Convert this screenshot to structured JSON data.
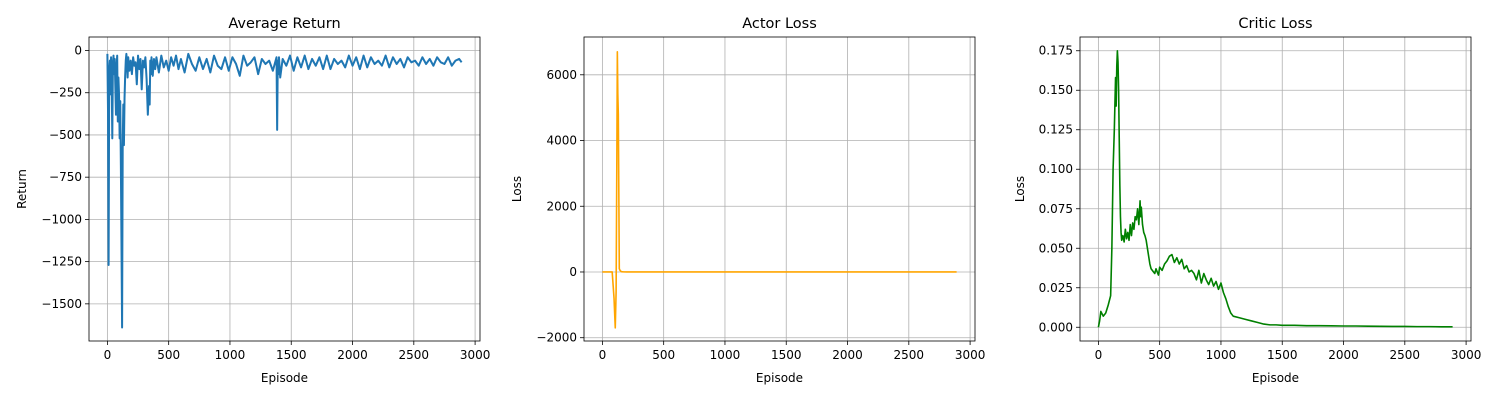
{
  "chart_data": [
    {
      "type": "line",
      "title": "Average Return",
      "xlabel": "Episode",
      "ylabel": "Return",
      "xlim": [
        -150,
        3040
      ],
      "ylim": [
        -1720,
        80
      ],
      "xticks": [
        0,
        500,
        1000,
        1500,
        2000,
        2500,
        3000
      ],
      "yticks": [
        0,
        -250,
        -500,
        -750,
        -1000,
        -1250,
        -1500
      ],
      "grid": true,
      "series": [
        {
          "color": "#1f77b4",
          "x": [
            0,
            5,
            10,
            15,
            20,
            25,
            30,
            35,
            40,
            45,
            50,
            55,
            60,
            65,
            70,
            75,
            80,
            85,
            90,
            95,
            100,
            105,
            110,
            115,
            120,
            125,
            130,
            135,
            140,
            145,
            150,
            155,
            160,
            165,
            170,
            180,
            190,
            200,
            210,
            220,
            230,
            240,
            250,
            260,
            270,
            280,
            290,
            300,
            310,
            320,
            330,
            340,
            345,
            350,
            355,
            360,
            370,
            380,
            390,
            400,
            420,
            440,
            460,
            480,
            500,
            520,
            540,
            560,
            580,
            600,
            630,
            660,
            690,
            720,
            750,
            780,
            810,
            840,
            870,
            900,
            930,
            960,
            990,
            1020,
            1050,
            1080,
            1110,
            1140,
            1170,
            1200,
            1230,
            1260,
            1290,
            1320,
            1350,
            1380,
            1385,
            1390,
            1395,
            1400,
            1410,
            1430,
            1460,
            1490,
            1520,
            1550,
            1580,
            1610,
            1640,
            1670,
            1700,
            1730,
            1760,
            1790,
            1820,
            1850,
            1880,
            1910,
            1940,
            1970,
            2000,
            2030,
            2060,
            2090,
            2120,
            2150,
            2180,
            2210,
            2240,
            2270,
            2300,
            2330,
            2360,
            2390,
            2420,
            2450,
            2480,
            2510,
            2540,
            2570,
            2600,
            2630,
            2660,
            2690,
            2720,
            2750,
            2780,
            2810,
            2840,
            2870,
            2890
          ],
          "y": [
            -20,
            -350,
            -1270,
            -120,
            -60,
            -260,
            -40,
            -180,
            -520,
            -80,
            -30,
            -140,
            -50,
            -220,
            -380,
            -100,
            -30,
            -420,
            -160,
            -260,
            -520,
            -300,
            -680,
            -1150,
            -1640,
            -560,
            -320,
            -560,
            -280,
            -150,
            -60,
            -20,
            -80,
            -160,
            -40,
            -120,
            -60,
            -140,
            -40,
            -90,
            -70,
            -200,
            -30,
            -110,
            -50,
            -230,
            -60,
            -100,
            -40,
            -170,
            -380,
            -210,
            -320,
            -60,
            -140,
            -40,
            -150,
            -50,
            -110,
            -40,
            -130,
            -30,
            -100,
            -60,
            -120,
            -40,
            -90,
            -30,
            -110,
            -50,
            -130,
            -20,
            -80,
            -120,
            -40,
            -110,
            -50,
            -130,
            -30,
            -90,
            -110,
            -40,
            -120,
            -40,
            -80,
            -150,
            -30,
            -90,
            -70,
            -40,
            -140,
            -50,
            -80,
            -60,
            -120,
            -40,
            -470,
            -60,
            -140,
            -40,
            -160,
            -50,
            -90,
            -30,
            -120,
            -40,
            -100,
            -30,
            -110,
            -50,
            -90,
            -40,
            -110,
            -30,
            -110,
            -50,
            -80,
            -60,
            -100,
            -30,
            -90,
            -40,
            -110,
            -30,
            -100,
            -40,
            -80,
            -60,
            -90,
            -30,
            -100,
            -40,
            -80,
            -50,
            -100,
            -40,
            -70,
            -60,
            -90,
            -40,
            -80,
            -50,
            -90,
            -40,
            -70,
            -80,
            -40,
            -90,
            -60,
            -50,
            -70
          ]
        }
      ]
    },
    {
      "type": "line",
      "title": "Actor Loss",
      "xlabel": "Episode",
      "ylabel": "Loss",
      "xlim": [
        -150,
        3040
      ],
      "ylim": [
        -2100,
        7150
      ],
      "xticks": [
        0,
        500,
        1000,
        1500,
        2000,
        2500,
        3000
      ],
      "yticks": [
        6000,
        4000,
        2000,
        0,
        -2000
      ],
      "grid": true,
      "series": [
        {
          "color": "#ffa500",
          "x": [
            0,
            50,
            80,
            95,
            105,
            112,
            118,
            122,
            126,
            130,
            134,
            138,
            145,
            155,
            170,
            200,
            300,
            500,
            1000,
            1500,
            2000,
            2500,
            2890
          ],
          "y": [
            0,
            0,
            0,
            -800,
            -1700,
            -600,
            3500,
            6700,
            5400,
            4800,
            2500,
            100,
            40,
            10,
            5,
            0,
            0,
            0,
            0,
            0,
            0,
            0,
            0
          ]
        }
      ]
    },
    {
      "type": "line",
      "title": "Critic Loss",
      "xlabel": "Episode",
      "ylabel": "Loss",
      "xlim": [
        -150,
        3040
      ],
      "ylim": [
        -0.0087,
        0.1837
      ],
      "xticks": [
        0,
        500,
        1000,
        1500,
        2000,
        2500,
        3000
      ],
      "yticks": [
        0.175,
        0.15,
        0.125,
        0.1,
        0.075,
        0.05,
        0.025,
        0.0
      ],
      "grid": true,
      "series": [
        {
          "color": "#008000",
          "x": [
            0,
            10,
            20,
            40,
            60,
            80,
            100,
            110,
            120,
            130,
            140,
            145,
            150,
            155,
            160,
            165,
            170,
            175,
            180,
            185,
            190,
            200,
            210,
            220,
            230,
            240,
            250,
            260,
            270,
            280,
            290,
            300,
            310,
            320,
            330,
            340,
            345,
            350,
            360,
            370,
            380,
            390,
            400,
            410,
            420,
            430,
            440,
            450,
            460,
            470,
            480,
            490,
            500,
            520,
            540,
            560,
            580,
            600,
            620,
            640,
            660,
            680,
            700,
            720,
            740,
            760,
            780,
            800,
            820,
            840,
            860,
            880,
            900,
            920,
            940,
            960,
            980,
            1000,
            1020,
            1040,
            1060,
            1080,
            1100,
            1150,
            1200,
            1250,
            1300,
            1350,
            1400,
            1450,
            1500,
            1600,
            1700,
            1800,
            1900,
            2000,
            2100,
            2200,
            2300,
            2400,
            2500,
            2600,
            2700,
            2800,
            2890
          ],
          "y": [
            0.0,
            0.004,
            0.01,
            0.007,
            0.009,
            0.014,
            0.02,
            0.05,
            0.1,
            0.125,
            0.158,
            0.14,
            0.165,
            0.175,
            0.168,
            0.15,
            0.12,
            0.09,
            0.07,
            0.06,
            0.055,
            0.058,
            0.054,
            0.062,
            0.056,
            0.06,
            0.055,
            0.065,
            0.058,
            0.066,
            0.062,
            0.07,
            0.068,
            0.075,
            0.065,
            0.08,
            0.07,
            0.076,
            0.065,
            0.06,
            0.058,
            0.055,
            0.05,
            0.045,
            0.04,
            0.037,
            0.036,
            0.035,
            0.034,
            0.037,
            0.035,
            0.033,
            0.038,
            0.036,
            0.04,
            0.042,
            0.045,
            0.046,
            0.041,
            0.044,
            0.04,
            0.043,
            0.037,
            0.039,
            0.035,
            0.036,
            0.034,
            0.03,
            0.036,
            0.028,
            0.034,
            0.03,
            0.027,
            0.031,
            0.026,
            0.029,
            0.024,
            0.028,
            0.022,
            0.018,
            0.013,
            0.009,
            0.007,
            0.006,
            0.005,
            0.004,
            0.003,
            0.002,
            0.0015,
            0.0015,
            0.0012,
            0.0012,
            0.001,
            0.001,
            0.0009,
            0.0008,
            0.0008,
            0.0007,
            0.0006,
            0.0005,
            0.0005,
            0.0004,
            0.0004,
            0.0003,
            0.0003
          ]
        }
      ]
    }
  ]
}
